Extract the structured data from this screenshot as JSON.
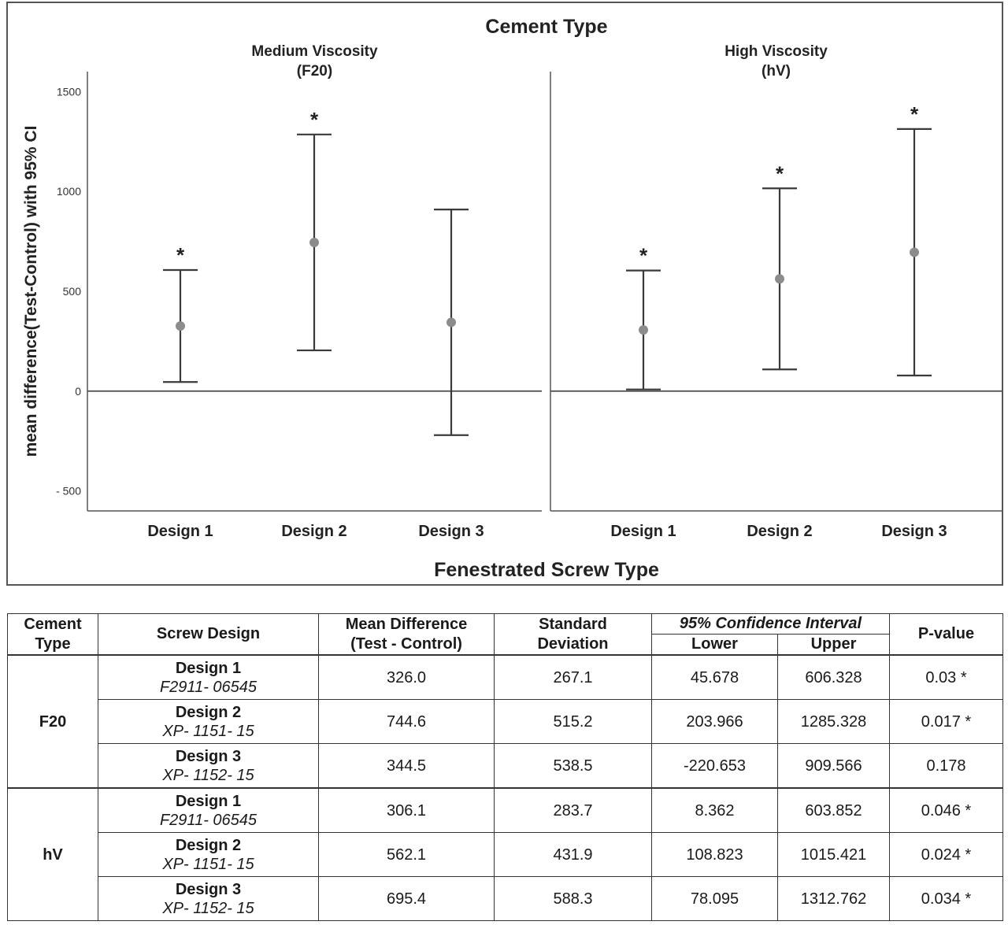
{
  "chart_data": {
    "type": "errorbar",
    "title": "Cement Type",
    "xlabel": "Fenestrated Screw Type",
    "ylabel": "mean difference(Test-Control) with 95% CI",
    "ylim": [
      -600,
      1600
    ],
    "yticks": [
      1500,
      1000,
      500,
      0,
      -500
    ],
    "ytick_labels": [
      "1500",
      "1000",
      "500",
      "0",
      "- 500"
    ],
    "categories": [
      "Design 1",
      "Design 2",
      "Design 3"
    ],
    "panels": [
      {
        "title_line1": "Medium Viscosity",
        "title_line2": "(F20)",
        "points": [
          {
            "category": "Design 1",
            "mean": 326.0,
            "lower": 45.678,
            "upper": 606.328,
            "significant": true
          },
          {
            "category": "Design 2",
            "mean": 744.6,
            "lower": 203.966,
            "upper": 1285.328,
            "significant": true
          },
          {
            "category": "Design 3",
            "mean": 344.5,
            "lower": -220.653,
            "upper": 909.566,
            "significant": false
          }
        ]
      },
      {
        "title_line1": "High Viscosity",
        "title_line2": "(hV)",
        "points": [
          {
            "category": "Design 1",
            "mean": 306.1,
            "lower": 8.362,
            "upper": 603.852,
            "significant": true
          },
          {
            "category": "Design 2",
            "mean": 562.1,
            "lower": 108.823,
            "upper": 1015.421,
            "significant": true
          },
          {
            "category": "Design 3",
            "mean": 695.4,
            "lower": 78.095,
            "upper": 1312.762,
            "significant": true
          }
        ]
      }
    ],
    "significance_marker": "*",
    "colors": {
      "whisker": "#3a3a3a",
      "point": "#8c8c8c",
      "axis": "#555555"
    }
  },
  "table": {
    "headers": {
      "cement_type_1": "Cement",
      "cement_type_2": "Type",
      "screw_design": "Screw Design",
      "mean_diff_1": "Mean Difference",
      "mean_diff_2": "(Test - Control)",
      "std_1": "Standard",
      "std_2": "Deviation",
      "ci": "95% Confidence Interval",
      "lower": "Lower",
      "upper": "Upper",
      "pvalue": "P-value"
    },
    "groups": [
      {
        "cement": "F20",
        "rows": [
          {
            "design": "Design 1",
            "code": "F2911- 06545",
            "mean": "326.0",
            "sd": "267.1",
            "lower": "45.678",
            "upper": "606.328",
            "p": "0.03 *"
          },
          {
            "design": "Design 2",
            "code": "XP- 1151- 15",
            "mean": "744.6",
            "sd": "515.2",
            "lower": "203.966",
            "upper": "1285.328",
            "p": "0.017 *"
          },
          {
            "design": "Design 3",
            "code": "XP- 1152- 15",
            "mean": "344.5",
            "sd": "538.5",
            "lower": "-220.653",
            "upper": "909.566",
            "p": "0.178"
          }
        ]
      },
      {
        "cement": "hV",
        "rows": [
          {
            "design": "Design 1",
            "code": "F2911- 06545",
            "mean": "306.1",
            "sd": "283.7",
            "lower": "8.362",
            "upper": "603.852",
            "p": "0.046 *"
          },
          {
            "design": "Design 2",
            "code": "XP- 1151- 15",
            "mean": "562.1",
            "sd": "431.9",
            "lower": "108.823",
            "upper": "1015.421",
            "p": "0.024 *"
          },
          {
            "design": "Design 3",
            "code": "XP- 1152- 15",
            "mean": "695.4",
            "sd": "588.3",
            "lower": "78.095",
            "upper": "1312.762",
            "p": "0.034 *"
          }
        ]
      }
    ]
  }
}
